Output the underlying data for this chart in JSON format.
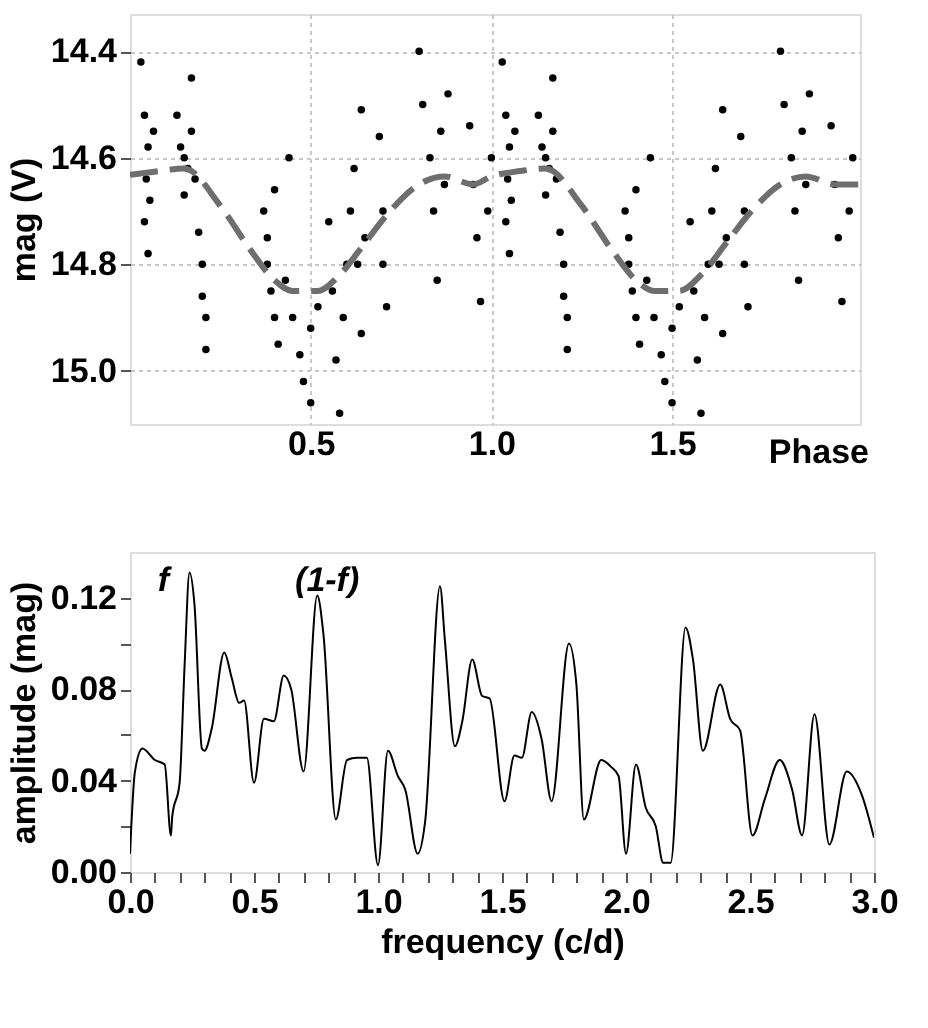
{
  "chart_data": [
    {
      "type": "scatter",
      "xlabel": "Phase",
      "ylabel": "mag (V)",
      "xlim": [
        0,
        2.02
      ],
      "ylim": [
        15.1,
        14.33
      ],
      "xticks": [
        0.5,
        {
          "value": 1.0,
          "label": "1.0"
        },
        1.5
      ],
      "yticks": [
        14.4,
        14.6,
        14.8,
        {
          "value": 15.0,
          "label": "15.0"
        }
      ],
      "grid": true,
      "series": [
        {
          "type": "scatter",
          "marker": "circle",
          "color": "#000000",
          "x": [
            0.03,
            0.04,
            0.05,
            0.045,
            0.055,
            0.04,
            0.05,
            0.065,
            0.13,
            0.14,
            0.15,
            0.16,
            0.17,
            0.17,
            0.18,
            0.15,
            0.19,
            0.2,
            0.2,
            0.21,
            0.21,
            0.37,
            0.38,
            0.38,
            0.39,
            0.4,
            0.41,
            0.4,
            0.43,
            0.45,
            0.47,
            0.48,
            0.5,
            0.5,
            0.52,
            0.44,
            0.55,
            0.56,
            0.57,
            0.58,
            0.59,
            0.6,
            0.61,
            0.62,
            0.63,
            0.64,
            0.64,
            0.65,
            0.69,
            0.7,
            0.7,
            0.71,
            0.8,
            0.81,
            0.83,
            0.84,
            0.85,
            0.86,
            0.87,
            0.88,
            0.94,
            0.95,
            0.96,
            0.97,
            0.99,
            1.0,
            1.03,
            1.04,
            1.05,
            1.045,
            1.055,
            1.04,
            1.05,
            1.065,
            1.13,
            1.14,
            1.15,
            1.16,
            1.17,
            1.17,
            1.18,
            1.15,
            1.19,
            1.2,
            1.2,
            1.21,
            1.21,
            1.37,
            1.38,
            1.38,
            1.39,
            1.4,
            1.41,
            1.4,
            1.43,
            1.45,
            1.47,
            1.48,
            1.5,
            1.5,
            1.52,
            1.44,
            1.55,
            1.56,
            1.57,
            1.58,
            1.59,
            1.6,
            1.61,
            1.62,
            1.63,
            1.64,
            1.64,
            1.65,
            1.69,
            1.7,
            1.7,
            1.71,
            1.8,
            1.81,
            1.83,
            1.84,
            1.85,
            1.86,
            1.87,
            1.88,
            1.94,
            1.95,
            1.96,
            1.97,
            1.99,
            2.0
          ],
          "values": [
            14.42,
            14.52,
            14.58,
            14.64,
            14.68,
            14.72,
            14.78,
            14.55,
            14.52,
            14.58,
            14.6,
            14.62,
            14.45,
            14.55,
            14.64,
            14.67,
            14.74,
            14.8,
            14.86,
            14.9,
            14.96,
            14.7,
            14.75,
            14.8,
            14.85,
            14.9,
            14.95,
            14.66,
            14.83,
            14.9,
            14.97,
            15.02,
            14.92,
            15.06,
            14.88,
            14.6,
            14.72,
            14.85,
            14.98,
            15.08,
            14.9,
            14.8,
            14.7,
            14.62,
            14.8,
            14.51,
            14.93,
            14.75,
            14.56,
            14.7,
            14.8,
            14.88,
            14.4,
            14.5,
            14.6,
            14.7,
            14.83,
            14.55,
            14.65,
            14.48,
            14.54,
            14.65,
            14.75,
            14.87,
            14.7,
            14.6,
            14.42,
            14.52,
            14.58,
            14.64,
            14.68,
            14.72,
            14.78,
            14.55,
            14.52,
            14.58,
            14.6,
            14.62,
            14.45,
            14.55,
            14.64,
            14.67,
            14.74,
            14.8,
            14.86,
            14.9,
            14.96,
            14.7,
            14.75,
            14.8,
            14.85,
            14.9,
            14.95,
            14.66,
            14.83,
            14.9,
            14.97,
            15.02,
            14.92,
            15.06,
            14.88,
            14.6,
            14.72,
            14.85,
            14.98,
            15.08,
            14.9,
            14.8,
            14.7,
            14.62,
            14.8,
            14.51,
            14.93,
            14.75,
            14.56,
            14.7,
            14.8,
            14.88,
            14.4,
            14.5,
            14.6,
            14.7,
            14.83,
            14.55,
            14.65,
            14.48,
            14.54,
            14.65,
            14.75,
            14.87,
            14.7,
            14.6
          ]
        },
        {
          "type": "line",
          "marker": "none",
          "color": "#6e6e6e",
          "line_style": "dashed",
          "x": [
            0,
            0.08,
            0.15,
            0.25,
            0.33,
            0.4,
            0.45,
            0.52,
            0.58,
            0.65,
            0.72,
            0.8,
            0.87,
            0.95,
            1.0,
            1.08,
            1.15,
            1.25,
            1.33,
            1.4,
            1.45,
            1.52,
            1.58,
            1.65,
            1.72,
            1.8,
            1.87,
            1.95,
            2.02
          ],
          "values": [
            14.632,
            14.625,
            14.62,
            14.69,
            14.77,
            14.83,
            14.85,
            14.85,
            14.82,
            14.76,
            14.7,
            14.65,
            14.635,
            14.65,
            14.635,
            14.625,
            14.62,
            14.69,
            14.77,
            14.83,
            14.85,
            14.85,
            14.82,
            14.76,
            14.7,
            14.65,
            14.635,
            14.65,
            14.65
          ]
        }
      ]
    },
    {
      "type": "line",
      "xlabel": "frequency (c/d)",
      "ylabel": "amplitude (mag)",
      "xlim": [
        0,
        3
      ],
      "ylim": [
        0,
        0.14
      ],
      "xticks": [
        {
          "value": 0,
          "label": "0.0"
        },
        {
          "value": 0.1,
          "label": null
        },
        {
          "value": 0.2,
          "label": null
        },
        {
          "value": 0.3,
          "label": null
        },
        {
          "value": 0.4,
          "label": null
        },
        0.5,
        {
          "value": 0.6,
          "label": null
        },
        {
          "value": 0.7,
          "label": null
        },
        {
          "value": 0.8,
          "label": null
        },
        {
          "value": 0.9,
          "label": null
        },
        {
          "value": 1.0,
          "label": "1.0"
        },
        {
          "value": 1.1,
          "label": null
        },
        {
          "value": 1.2,
          "label": null
        },
        {
          "value": 1.3,
          "label": null
        },
        {
          "value": 1.4,
          "label": null
        },
        1.5,
        {
          "value": 1.6,
          "label": null
        },
        {
          "value": 1.7,
          "label": null
        },
        {
          "value": 1.8,
          "label": null
        },
        {
          "value": 1.9,
          "label": null
        },
        {
          "value": 2.0,
          "label": "2.0"
        },
        {
          "value": 2.1,
          "label": null
        },
        {
          "value": 2.2,
          "label": null
        },
        {
          "value": 2.3,
          "label": null
        },
        {
          "value": 2.4,
          "label": null
        },
        2.5,
        {
          "value": 2.6,
          "label": null
        },
        {
          "value": 2.7,
          "label": null
        },
        {
          "value": 2.8,
          "label": null
        },
        {
          "value": 2.9,
          "label": null
        },
        {
          "value": 3.0,
          "label": "3.0"
        }
      ],
      "yticks": [
        {
          "value": 0,
          "label": "0.00"
        },
        {
          "value": 0.02,
          "label": null
        },
        0.04,
        {
          "value": 0.06,
          "label": null
        },
        0.08,
        {
          "value": 0.1,
          "label": null
        },
        0.12
      ],
      "grid": false,
      "color": "#000000",
      "annotations": [
        "f",
        "(1-f)"
      ],
      "x": [
        0.0,
        0.02,
        0.05,
        0.1,
        0.14,
        0.165,
        0.17,
        0.2,
        0.22,
        0.24,
        0.26,
        0.29,
        0.3,
        0.33,
        0.38,
        0.41,
        0.44,
        0.46,
        0.5,
        0.54,
        0.58,
        0.62,
        0.65,
        0.7,
        0.755,
        0.78,
        0.83,
        0.875,
        0.915,
        0.955,
        1.0,
        1.04,
        1.08,
        1.11,
        1.16,
        1.19,
        1.25,
        1.27,
        1.31,
        1.34,
        1.38,
        1.42,
        1.45,
        1.51,
        1.55,
        1.58,
        1.62,
        1.66,
        1.7,
        1.77,
        1.8,
        1.83,
        1.9,
        1.94,
        1.97,
        2.0,
        2.04,
        2.08,
        2.12,
        2.15,
        2.18,
        2.24,
        2.27,
        2.31,
        2.38,
        2.42,
        2.46,
        2.51,
        2.56,
        2.62,
        2.67,
        2.71,
        2.76,
        2.82,
        2.89,
        2.95,
        3.0
      ],
      "values": [
        0.008,
        0.044,
        0.054,
        0.049,
        0.047,
        0.016,
        0.024,
        0.039,
        0.09,
        0.131,
        0.117,
        0.054,
        0.053,
        0.063,
        0.096,
        0.085,
        0.074,
        0.075,
        0.039,
        0.067,
        0.066,
        0.086,
        0.08,
        0.044,
        0.121,
        0.104,
        0.023,
        0.049,
        0.05,
        0.05,
        0.003,
        0.053,
        0.042,
        0.036,
        0.008,
        0.022,
        0.125,
        0.101,
        0.055,
        0.066,
        0.093,
        0.077,
        0.076,
        0.031,
        0.051,
        0.05,
        0.07,
        0.058,
        0.031,
        0.1,
        0.082,
        0.023,
        0.049,
        0.046,
        0.042,
        0.008,
        0.047,
        0.028,
        0.02,
        0.004,
        0.004,
        0.107,
        0.093,
        0.053,
        0.082,
        0.067,
        0.062,
        0.016,
        0.032,
        0.049,
        0.036,
        0.016,
        0.069,
        0.012,
        0.044,
        0.034,
        0.015
      ]
    }
  ]
}
